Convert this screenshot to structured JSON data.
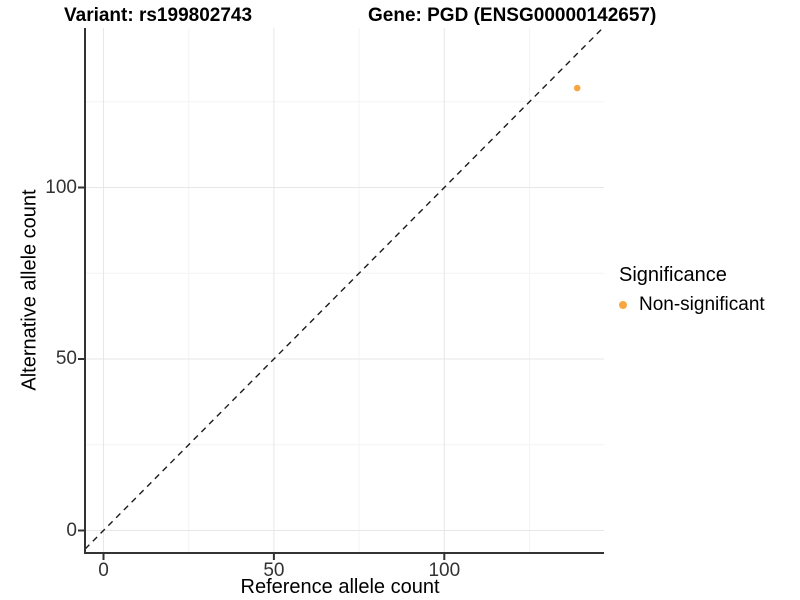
{
  "titles": {
    "variant": "Variant: rs199802743",
    "gene": "Gene: PGD (ENSG00000142657)"
  },
  "axes": {
    "x": {
      "label": "Reference allele count",
      "ticks": [
        0,
        50,
        100
      ],
      "minor_ticks": [
        25,
        75,
        125
      ],
      "range": [
        -5.4,
        146.8
      ]
    },
    "y": {
      "label": "Alternative allele count",
      "ticks": [
        0,
        50,
        100
      ],
      "minor_ticks": [
        25,
        75,
        125
      ],
      "range": [
        -6.6,
        146.5
      ]
    }
  },
  "legend": {
    "title": "Significance",
    "items": [
      {
        "label": "Non-significant",
        "color": "#F8A642"
      }
    ]
  },
  "colors": {
    "point": "#F8A642",
    "grid_major": "#e7e7e7",
    "grid_minor": "#f3f3f3",
    "axis_line": "#333333",
    "tick_mark": "#333333",
    "dashed_line": "#1a1a1a"
  },
  "chart_data": {
    "type": "scatter",
    "title": "Variant: rs199802743 | Gene: PGD (ENSG00000142657)",
    "xlabel": "Reference allele count",
    "ylabel": "Alternative allele count",
    "xlim": [
      -5.4,
      146.8
    ],
    "ylim": [
      -6.6,
      146.5
    ],
    "x_ticks": [
      0,
      50,
      100
    ],
    "y_ticks": [
      0,
      50,
      100
    ],
    "grid": "major+minor",
    "legend_position": "right",
    "series": [
      {
        "name": "Non-significant",
        "color": "#F8A642",
        "points": [
          {
            "x": 139,
            "y": 129
          }
        ]
      }
    ],
    "reference_line": {
      "kind": "identity",
      "slope": 1,
      "intercept": 0,
      "style": "dashed"
    }
  }
}
